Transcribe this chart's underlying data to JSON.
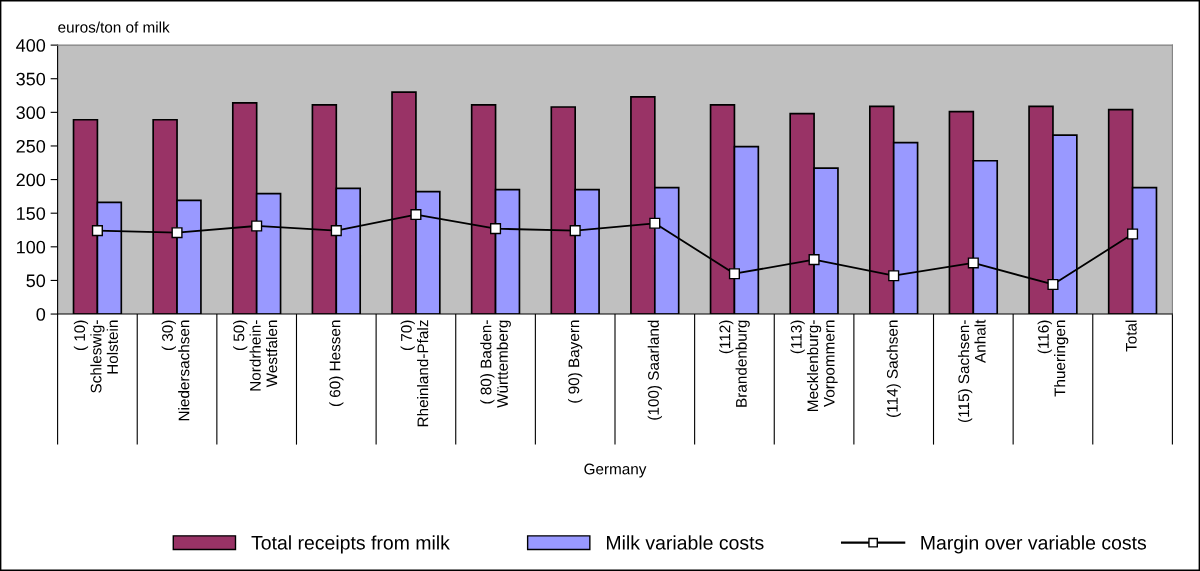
{
  "chart_data": {
    "type": "bar",
    "ylabel": "euros/ton of milk",
    "xlabel": "Germany",
    "categories": [
      "( 10)\nSchleswig-\nHolstein",
      "( 30)\nNiedersachsen",
      "( 50)\nNordrhein-\nWestfalen",
      "( 60) Hessen",
      "( 70)\nRheinland-Pfalz",
      "( 80) Baden-\nWürttemberg",
      "( 90) Bayern",
      "(100) Saarland",
      "(112)\nBrandenburg",
      "(113)\nMecklenburg-\nVorpommern",
      "(114) Sachsen",
      "(115) Sachsen-\nAnhalt",
      "(116)\nThueringen",
      "Total"
    ],
    "series": [
      {
        "name": "Total receipts from milk",
        "color": "#993366",
        "values": [
          289,
          289,
          314,
          311,
          330,
          311,
          308,
          323,
          311,
          298,
          309,
          301,
          309,
          304
        ]
      },
      {
        "name": "Milk variable costs",
        "color": "#9999ff",
        "values": [
          166,
          169,
          179,
          187,
          182,
          185,
          185,
          188,
          249,
          217,
          255,
          228,
          266,
          188
        ]
      },
      {
        "name": "Margin over variable costs",
        "type": "line",
        "color": "#000000",
        "marker": "square",
        "values": [
          124,
          121,
          131,
          124,
          148,
          127,
          124,
          135,
          60,
          81,
          57,
          76,
          44,
          119
        ]
      }
    ],
    "ylim": [
      0,
      400
    ],
    "yticks": [
      0,
      50,
      100,
      150,
      200,
      250,
      300,
      350,
      400
    ],
    "grid": false,
    "legend": "bottom"
  }
}
